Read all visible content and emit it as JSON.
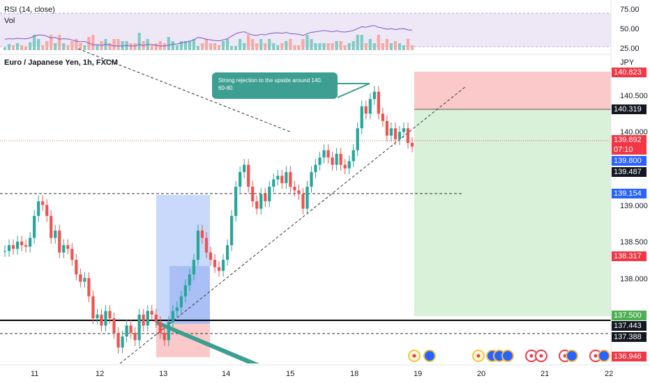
{
  "header": {
    "rsi_label": "RSI (14, close)",
    "vol_label": "Vol",
    "symbol_title": "Euro / Japanese Yen, 1h, FXCM",
    "currency": "JPY"
  },
  "callout": {
    "text": "Strong rejection to the upside around 140. 60-80."
  },
  "rsi_axis": [
    "75.00",
    "50.00",
    "25.00"
  ],
  "price_axis": [
    "140.500",
    "140.000",
    "139.000",
    "138.500",
    "138.000"
  ],
  "time_axis": [
    "11",
    "12",
    "13",
    "14",
    "15",
    "18",
    "19",
    "20",
    "21",
    "22"
  ],
  "price_labels": [
    {
      "text": "140.823",
      "bg": "#f23645",
      "fg": "#ffffff"
    },
    {
      "text": "140.319",
      "bg": "#131722",
      "fg": "#ffffff"
    },
    {
      "text": "139.892",
      "bg": "#f23645",
      "fg": "#ffffff"
    },
    {
      "text": "07:10",
      "bg": "#f23645",
      "fg": "#ffffff"
    },
    {
      "text": "139.800",
      "bg": "#2962ff",
      "fg": "#ffffff"
    },
    {
      "text": "139.487",
      "bg": "#131722",
      "fg": "#ffffff"
    },
    {
      "text": "139.154",
      "bg": "#2962ff",
      "fg": "#ffffff"
    },
    {
      "text": "138.317",
      "bg": "#f23645",
      "fg": "#ffffff"
    },
    {
      "text": "137.500",
      "bg": "#4caf50",
      "fg": "#ffffff"
    },
    {
      "text": "137.443",
      "bg": "#131722",
      "fg": "#ffffff"
    },
    {
      "text": "137.388",
      "bg": "#131722",
      "fg": "#ffffff"
    },
    {
      "text": "136.946",
      "bg": "#f23645",
      "fg": "#ffffff"
    }
  ],
  "colors": {
    "up": "#26a69a",
    "down": "#ef5350",
    "rsi_line": "#7e57c2",
    "rsi_band": "#ede7f6",
    "target_zone": "#d9f0d9",
    "stop_zone": "#fbc9c9",
    "blue_zone": "#c9d9fb",
    "callout": "#3d9f91"
  },
  "chart_data": {
    "type": "candlestick",
    "symbol": "Euro / Japanese Yen, 1h, FXCM",
    "ylim": [
      136.9,
      140.95
    ],
    "position_levels": {
      "entry": 140.319,
      "stop": 140.823,
      "target": 137.5
    },
    "horizontal_levels": [
      139.154,
      137.443,
      137.388
    ],
    "last_price": 139.892,
    "candles": [
      138.42,
      138.5,
      138.45,
      138.55,
      138.5,
      138.48,
      138.6,
      138.9,
      139.1,
      139.05,
      138.9,
      138.6,
      138.7,
      138.4,
      138.5,
      138.45,
      138.3,
      138.1,
      138.0,
      138.05,
      137.8,
      137.5,
      137.55,
      137.4,
      137.6,
      137.5,
      137.3,
      137.1,
      137.25,
      137.4,
      137.3,
      137.2,
      137.55,
      137.4,
      137.6,
      137.55,
      137.45,
      137.3,
      137.2,
      137.45,
      137.6,
      137.65,
      137.8,
      137.95,
      138.1,
      138.3,
      138.7,
      138.6,
      138.4,
      138.3,
      138.2,
      138.15,
      138.3,
      138.5,
      138.9,
      139.3,
      139.5,
      139.6,
      139.3,
      139.1,
      139.0,
      139.2,
      139.1,
      139.3,
      139.4,
      139.45,
      139.35,
      139.5,
      139.3,
      139.25,
      139.2,
      139.0,
      139.3,
      139.5,
      139.6,
      139.7,
      139.8,
      139.7,
      139.6,
      139.75,
      139.6,
      139.55,
      139.65,
      139.8,
      140.1,
      140.4,
      140.3,
      140.5,
      140.6,
      140.3,
      140.2,
      140.0,
      140.1,
      139.95,
      140.05,
      140.1,
      139.9,
      139.85
    ]
  }
}
